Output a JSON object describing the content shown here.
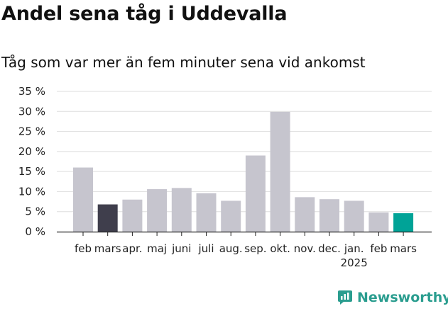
{
  "header": {
    "title": "Andel sena tåg i Uddevalla",
    "subtitle": "Tåg som var mer än fem minuter sena vid ankomst"
  },
  "brand": {
    "name": "Newsworthy",
    "icon": "newsworthy-logo-icon"
  },
  "colors": {
    "bar_default": "#c6c5ce",
    "bar_highlight_dark": "#3f3e4c",
    "bar_highlight_teal": "#00a397",
    "brand": "#2a9d8f"
  },
  "chart_data": {
    "type": "bar",
    "title": "Andel sena tåg i Uddevalla",
    "subtitle": "Tåg som var mer än fem minuter sena vid ankomst",
    "categories": [
      "feb",
      "mars",
      "apr.",
      "maj",
      "juni",
      "juli",
      "aug.",
      "sep.",
      "okt.",
      "nov.",
      "dec.",
      "jan.",
      "feb",
      "mars"
    ],
    "year_labels": [
      {
        "index": 11,
        "text": "2025"
      }
    ],
    "values": [
      16.0,
      6.8,
      8.0,
      10.6,
      10.9,
      9.6,
      7.7,
      19.0,
      29.9,
      8.6,
      8.1,
      7.7,
      4.8,
      4.6
    ],
    "highlight": [
      {
        "index": 1,
        "color": "#3f3e4c"
      },
      {
        "index": 13,
        "color": "#00a397"
      }
    ],
    "ylim": [
      0,
      35
    ],
    "yticks": [
      0,
      5,
      10,
      15,
      20,
      25,
      30,
      35
    ],
    "ytick_labels": [
      "0 %",
      "5 %",
      "10 %",
      "15 %",
      "20 %",
      "25 %",
      "30 %",
      "35 %"
    ],
    "xlabel": "",
    "ylabel": "",
    "grid": true,
    "legend": "none"
  }
}
